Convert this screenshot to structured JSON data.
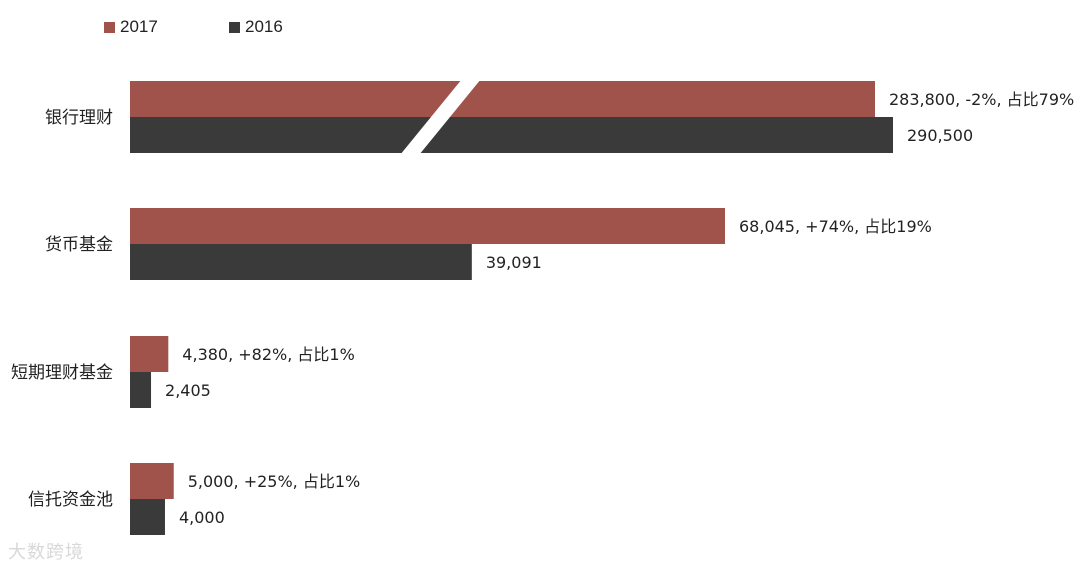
{
  "chart_data": {
    "type": "bar",
    "orientation": "horizontal",
    "axis_break": true,
    "legend_position": "top-left",
    "categories": [
      "银行理财",
      "货币基金",
      "短期理财基金",
      "信托资金池"
    ],
    "series": [
      {
        "name": "2017",
        "color": "#a0534a",
        "values": [
          283800,
          68045,
          4380,
          5000
        ],
        "labels": [
          "283,800, -2%, 占比79%",
          "68,045, +74%, 占比19%",
          "4,380, +82%, 占比1%",
          "5,000, +25%, 占比1%"
        ]
      },
      {
        "name": "2016",
        "color": "#3a3a3a",
        "values": [
          290500,
          39091,
          2405,
          4000
        ],
        "labels": [
          "290,500",
          "39,091",
          "2,405",
          "4,000"
        ]
      }
    ]
  },
  "watermark": "大数跨境"
}
